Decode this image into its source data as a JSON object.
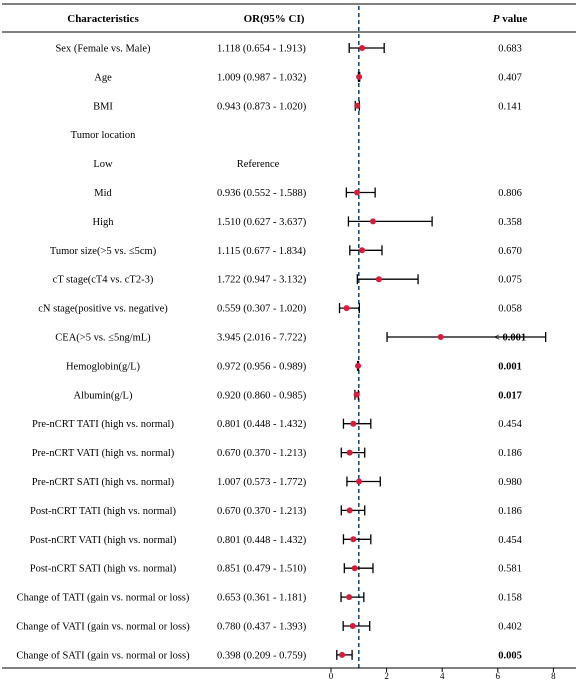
{
  "header": {
    "characteristics": "Characteristics",
    "or_ci": "OR(95% CI)",
    "p_italic": "P",
    "p_rest": " value"
  },
  "colors": {
    "point": "#d81b3c",
    "whisker": "#000000",
    "reference_line": "#1f4e79"
  },
  "chart_data": {
    "type": "forest",
    "reference_value": 1,
    "xlim": [
      0,
      8
    ],
    "x_ticks": [
      0,
      2,
      4,
      6,
      8
    ],
    "rows": [
      {
        "label": "Sex (Female vs. Male)",
        "ci_text": "1.118 (0.654 - 1.913)",
        "or": 1.118,
        "low": 0.654,
        "high": 1.913,
        "p": "0.683",
        "p_bold": false
      },
      {
        "label": "Age",
        "ci_text": "1.009 (0.987 - 1.032)",
        "or": 1.009,
        "low": 0.987,
        "high": 1.032,
        "p": "0.407",
        "p_bold": false
      },
      {
        "label": "BMI",
        "ci_text": "0.943 (0.873 - 1.020)",
        "or": 0.943,
        "low": 0.873,
        "high": 1.02,
        "p": "0.141",
        "p_bold": false
      },
      {
        "label": "Tumor location",
        "ci_text": "",
        "or": null,
        "low": null,
        "high": null,
        "p": "",
        "p_bold": false
      },
      {
        "label": "Low",
        "ci_text": "Reference",
        "or": null,
        "low": null,
        "high": null,
        "p": "",
        "p_bold": false
      },
      {
        "label": "Mid",
        "ci_text": "0.936 (0.552 - 1.588)",
        "or": 0.936,
        "low": 0.552,
        "high": 1.588,
        "p": "0.806",
        "p_bold": false
      },
      {
        "label": "High",
        "ci_text": "1.510 (0.627 - 3.637)",
        "or": 1.51,
        "low": 0.627,
        "high": 3.637,
        "p": "0.358",
        "p_bold": false
      },
      {
        "label": "Tumor size(>5 vs. ≤5cm)",
        "ci_text": "1.115 (0.677 - 1.834)",
        "or": 1.115,
        "low": 0.677,
        "high": 1.834,
        "p": "0.670",
        "p_bold": false
      },
      {
        "label": "cT stage(cT4 vs. cT2-3)",
        "ci_text": "1.722 (0.947 - 3.132)",
        "or": 1.722,
        "low": 0.947,
        "high": 3.132,
        "p": "0.075",
        "p_bold": false
      },
      {
        "label": "cN stage(positive vs. negative)",
        "ci_text": "0.559 (0.307 - 1.020)",
        "or": 0.559,
        "low": 0.307,
        "high": 1.02,
        "p": "0.058",
        "p_bold": false
      },
      {
        "label": "CEA(>5 vs. ≤5ng/mL)",
        "ci_text": "3.945 (2.016 - 7.722)",
        "or": 3.945,
        "low": 2.016,
        "high": 7.722,
        "p": "< 0.001",
        "p_bold": true
      },
      {
        "label": "Hemoglobin(g/L)",
        "ci_text": "0.972 (0.956 - 0.989)",
        "or": 0.972,
        "low": 0.956,
        "high": 0.989,
        "p": "0.001",
        "p_bold": true
      },
      {
        "label": "Albumin(g/L)",
        "ci_text": "0.920 (0.860 - 0.985)",
        "or": 0.92,
        "low": 0.86,
        "high": 0.985,
        "p": "0.017",
        "p_bold": true
      },
      {
        "label": "Pre-nCRT TATI (high vs. normal)",
        "ci_text": "0.801 (0.448 - 1.432)",
        "or": 0.801,
        "low": 0.448,
        "high": 1.432,
        "p": "0.454",
        "p_bold": false
      },
      {
        "label": "Pre-nCRT VATI (high vs. normal)",
        "ci_text": "0.670 (0.370 - 1.213)",
        "or": 0.67,
        "low": 0.37,
        "high": 1.213,
        "p": "0.186",
        "p_bold": false
      },
      {
        "label": "Pre-nCRT SATI (high vs. normal)",
        "ci_text": "1.007 (0.573 - 1.772)",
        "or": 1.007,
        "low": 0.573,
        "high": 1.772,
        "p": "0.980",
        "p_bold": false
      },
      {
        "label": "Post-nCRT TATI (high vs. normal)",
        "ci_text": "0.670 (0.370 - 1.213)",
        "or": 0.67,
        "low": 0.37,
        "high": 1.213,
        "p": "0.186",
        "p_bold": false
      },
      {
        "label": "Post-nCRT VATI (high vs. normal)",
        "ci_text": "0.801 (0.448 - 1.432)",
        "or": 0.801,
        "low": 0.448,
        "high": 1.432,
        "p": "0.454",
        "p_bold": false
      },
      {
        "label": "Post-nCRT SATI (high vs. normal)",
        "ci_text": "0.851 (0.479 - 1.510)",
        "or": 0.851,
        "low": 0.479,
        "high": 1.51,
        "p": "0.581",
        "p_bold": false
      },
      {
        "label": "Change of TATI (gain vs. normal or loss)",
        "ci_text": "0.653 (0.361 - 1.181)",
        "or": 0.653,
        "low": 0.361,
        "high": 1.181,
        "p": "0.158",
        "p_bold": false
      },
      {
        "label": "Change of VATI (gain vs. normal or loss)",
        "ci_text": "0.780 (0.437 - 1.393)",
        "or": 0.78,
        "low": 0.437,
        "high": 1.393,
        "p": "0.402",
        "p_bold": false
      },
      {
        "label": "Change of SATI (gain vs. normal or loss)",
        "ci_text": "0.398 (0.209 - 0.759)",
        "or": 0.398,
        "low": 0.209,
        "high": 0.759,
        "p": "0.005",
        "p_bold": true
      }
    ]
  }
}
